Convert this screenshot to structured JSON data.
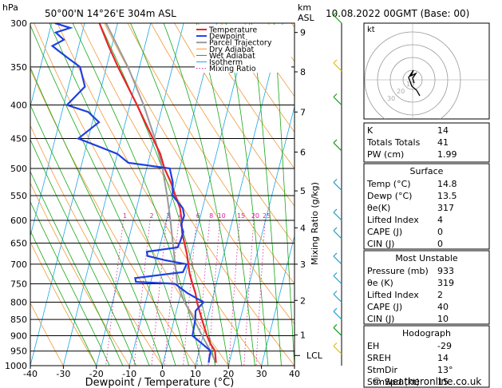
{
  "header": {
    "location": "50°00'N  14°26'E  304m  ASL",
    "datetime": "10.08.2022  00GMT  (Base: 00)"
  },
  "axes": {
    "pressure_unit": "hPa",
    "height_unit_km": "km",
    "height_unit_asl": "ASL",
    "xlabel": "Dewpoint / Temperature (°C)",
    "mixing_axis_label": "Mixing Ratio (g/kg)",
    "lcl_label": "LCL",
    "pressure_ticks": [
      "300",
      "350",
      "400",
      "450",
      "500",
      "550",
      "600",
      "650",
      "700",
      "750",
      "800",
      "850",
      "900",
      "950",
      "1000"
    ],
    "temp_ticks": [
      "-40",
      "-30",
      "-20",
      "-10",
      "0",
      "10",
      "20",
      "30",
      "40"
    ],
    "km_ticks": [
      "9",
      "8",
      "7",
      "6",
      "5",
      "4",
      "3",
      "2",
      "1"
    ],
    "mixing_ticks": [
      "1",
      "2",
      "3",
      "4",
      "6",
      "8",
      "10",
      "15",
      "20",
      "25"
    ]
  },
  "legend": [
    "Temperature",
    "Dewpoint",
    "Parcel Trajectory",
    "Dry Adiabat",
    "Wet Adiabat",
    "Isotherm",
    "Mixing Ratio"
  ],
  "colors": {
    "temperature": "#e8262a",
    "dewpoint": "#1f3fe0",
    "parcel": "#9a9a9a",
    "dry_adiabat": "#f29a3a",
    "wet_adiabat": "#17a817",
    "isotherm": "#1ba6e8",
    "mixing": "#d9209a",
    "wind": "#1a9e1a"
  },
  "chart_data": {
    "type": "line",
    "title": "50°00'N  14°26'E  304m  ASL",
    "xlabel": "Dewpoint / Temperature (°C)",
    "ylabel": "hPa",
    "xlim": [
      -40,
      40
    ],
    "ylim": [
      1000,
      300
    ],
    "yscale": "log",
    "skew": true,
    "series": [
      {
        "name": "Temperature",
        "pressure": [
          990,
          970,
          950,
          925,
          900,
          875,
          850,
          825,
          800,
          775,
          750,
          725,
          700,
          675,
          650,
          625,
          600,
          575,
          550,
          525,
          500,
          475,
          450,
          425,
          400,
          375,
          350,
          325,
          300
        ],
        "values": [
          16.0,
          15.4,
          14.8,
          12.8,
          11.2,
          9.8,
          8.4,
          7.0,
          5.6,
          4.4,
          2.8,
          1.2,
          0.0,
          -1.2,
          -2.8,
          -4.4,
          -5.4,
          -6.8,
          -9.2,
          -11.6,
          -14.6,
          -17.0,
          -20.4,
          -24.0,
          -27.8,
          -32.0,
          -36.5,
          -41.0,
          -45.5
        ]
      },
      {
        "name": "Dewpoint",
        "pressure": [
          990,
          970,
          950,
          925,
          900,
          875,
          850,
          825,
          800,
          775,
          750,
          745,
          735,
          720,
          700,
          690,
          680,
          670,
          660,
          645,
          625,
          610,
          590,
          575,
          550,
          525,
          500,
          490,
          475,
          450,
          425,
          410,
          400,
          375,
          350,
          340,
          330,
          325,
          318,
          310,
          305,
          300
        ],
        "values": [
          13.8,
          13.6,
          13.5,
          10.2,
          6.8,
          6.6,
          6.4,
          5.8,
          7.6,
          2.0,
          -2.5,
          -14.5,
          -15.0,
          -1.0,
          -0.5,
          -7.5,
          -13.0,
          -13.5,
          -4.5,
          -4.2,
          -4.0,
          -5.2,
          -5.0,
          -6.0,
          -10.0,
          -11.0,
          -13.0,
          -26.0,
          -30.0,
          -43.0,
          -38.0,
          -42.0,
          -49.0,
          -45.0,
          -48.0,
          -52.0,
          -56.0,
          -58.0,
          -55.0,
          -58.0,
          -54.0,
          -59.0
        ]
      },
      {
        "name": "Parcel Trajectory",
        "pressure": [
          990,
          950,
          925,
          900,
          850,
          800,
          750,
          700,
          650,
          600,
          550,
          500,
          450,
          400,
          350,
          300
        ],
        "values": [
          16.0,
          13.4,
          11.6,
          9.7,
          6.0,
          1.8,
          -1.8,
          -4.0,
          -6.3,
          -8.8,
          -11.7,
          -15.2,
          -19.8,
          -25.8,
          -33.5,
          -43.5
        ]
      }
    ],
    "mixing_ratios_gkg": [
      1,
      2,
      3,
      4,
      6,
      8,
      10,
      15,
      20,
      25
    ],
    "lcl_pressure": 965,
    "height_scale_km": [
      [
        9,
        310
      ],
      [
        8,
        356
      ],
      [
        7,
        410
      ],
      [
        6,
        472
      ],
      [
        5,
        541
      ],
      [
        4,
        616
      ],
      [
        3,
        700
      ],
      [
        2,
        795
      ],
      [
        1,
        898
      ]
    ]
  },
  "indices": [
    {
      "label": "K",
      "value": "14"
    },
    {
      "label": "Totals Totals",
      "value": "41"
    },
    {
      "label": "PW (cm)",
      "value": "1.99"
    }
  ],
  "surface": {
    "title": "Surface",
    "rows": [
      {
        "label": "Temp (°C)",
        "value": "14.8"
      },
      {
        "label": "Dewp (°C)",
        "value": "13.5"
      },
      {
        "label": "θe(K)",
        "value": "317"
      },
      {
        "label": "Lifted Index",
        "value": "4"
      },
      {
        "label": "CAPE (J)",
        "value": "0"
      },
      {
        "label": "CIN (J)",
        "value": "0"
      }
    ]
  },
  "most_unstable": {
    "title": "Most Unstable",
    "rows": [
      {
        "label": "Pressure (mb)",
        "value": "933"
      },
      {
        "label": "θe (K)",
        "value": "319"
      },
      {
        "label": "Lifted Index",
        "value": "2"
      },
      {
        "label": "CAPE (J)",
        "value": "40"
      },
      {
        "label": "CIN (J)",
        "value": "10"
      }
    ]
  },
  "hodograph_table": {
    "title": "Hodograph",
    "rows": [
      {
        "label": "EH",
        "value": "-29"
      },
      {
        "label": "SREH",
        "value": "14"
      },
      {
        "label": "StmDir",
        "value": "13°"
      },
      {
        "label": "StmSpd (kt)",
        "value": "15"
      }
    ]
  },
  "hodograph": {
    "unit": "kt",
    "ring_labels": [
      "10",
      "20",
      "30"
    ]
  },
  "footer": {
    "copyright": "© weatheronline.co.uk"
  }
}
